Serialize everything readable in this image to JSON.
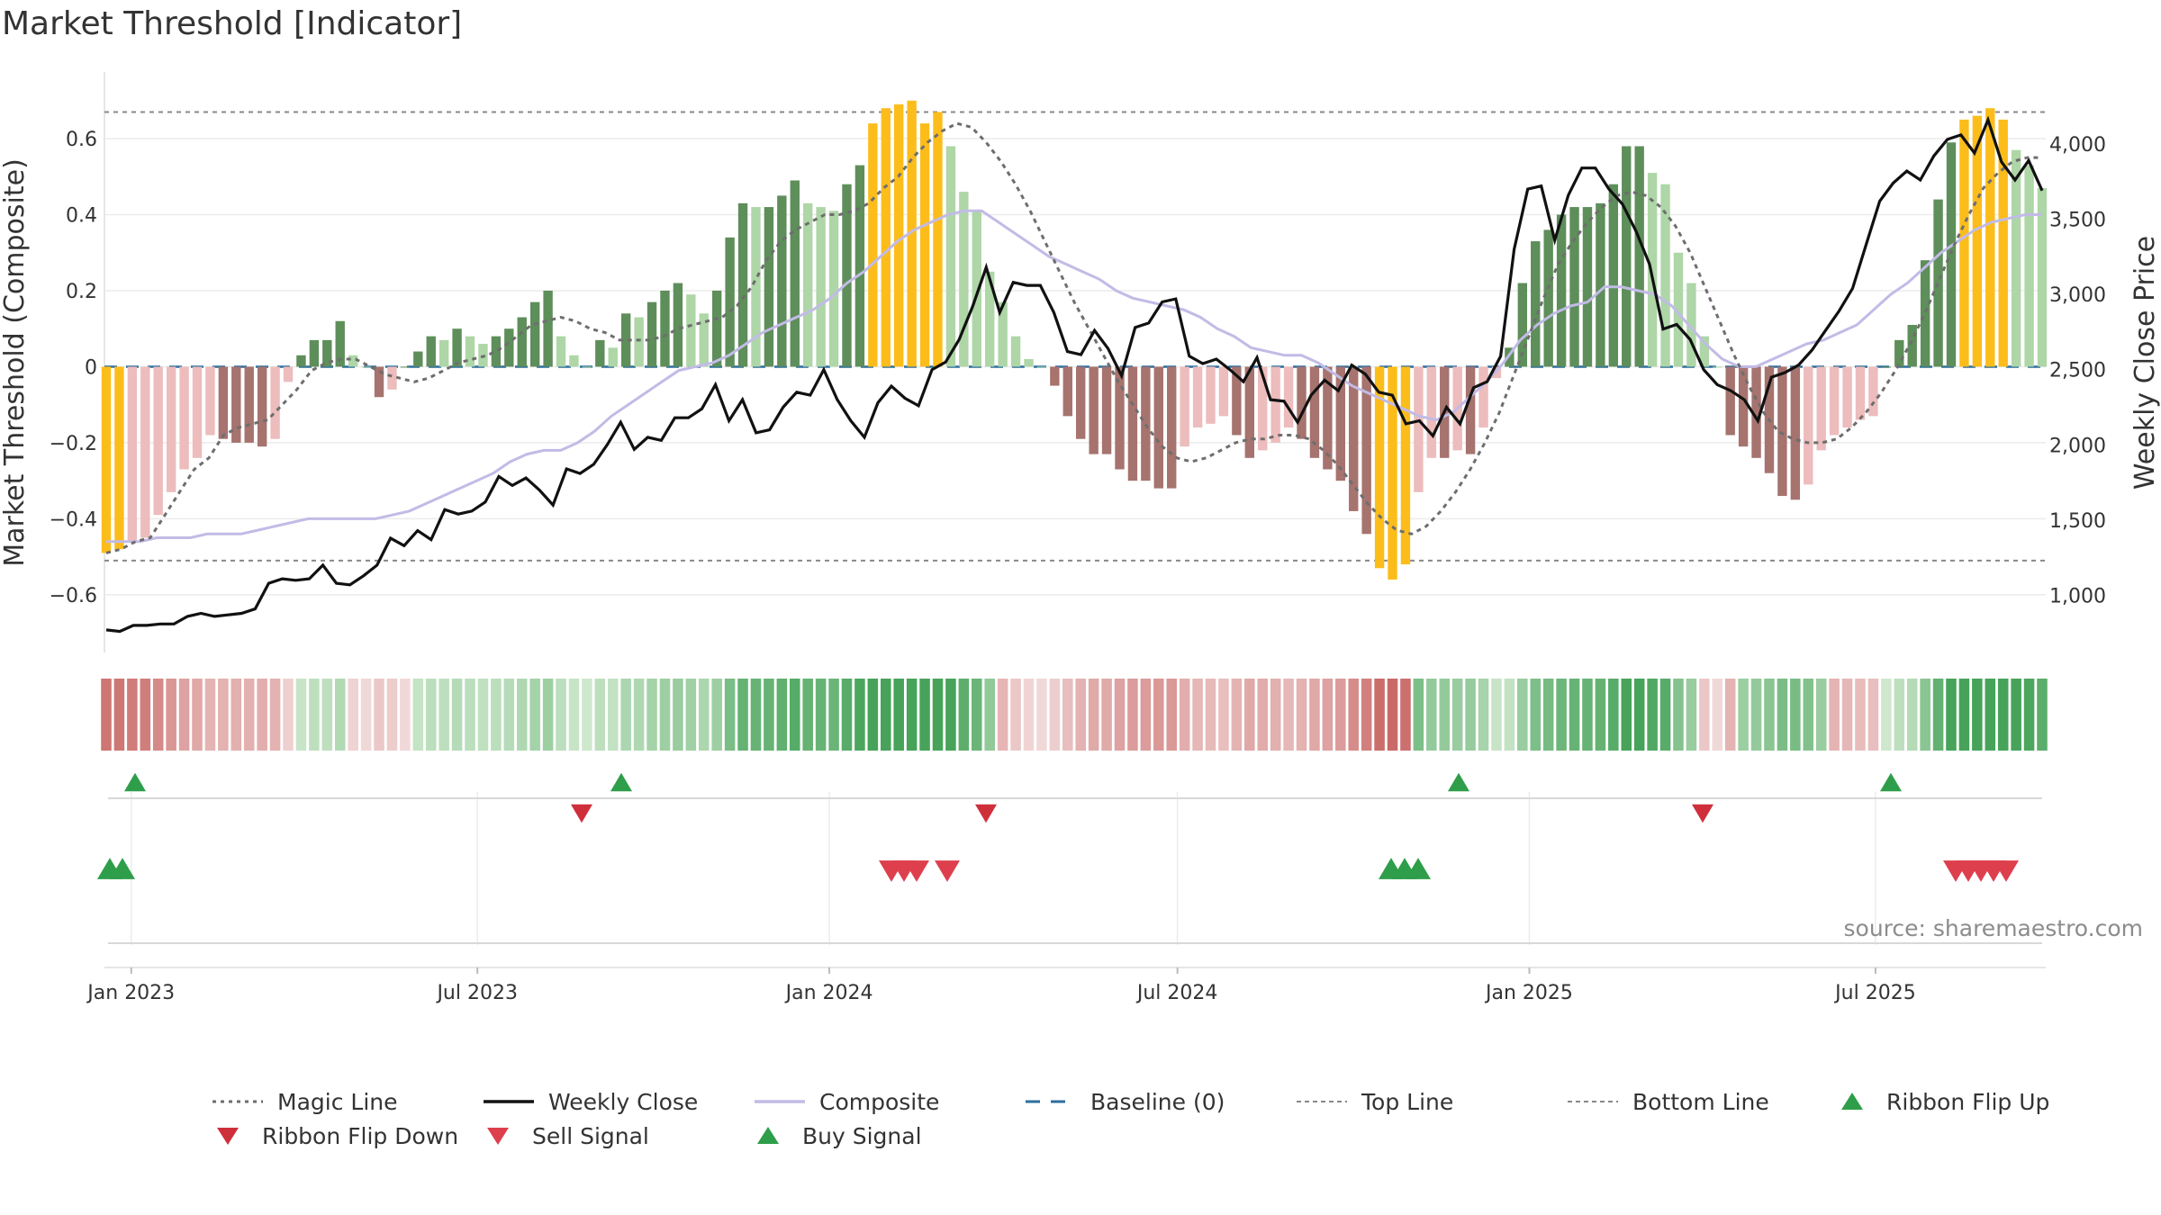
{
  "chart_data": {
    "type": "bar+line",
    "title": "Market Threshold [Indicator]",
    "source": "source: sharemaestro.com",
    "y_left": {
      "label": "Market Threshold (Composite)",
      "range": [
        -0.74,
        0.78
      ],
      "ticks": [
        0.6,
        0.4,
        0.2,
        0,
        -0.2,
        -0.4,
        -0.6
      ],
      "tick_labels": [
        "0.6",
        "0.4",
        "0.2",
        "0",
        "−0.2",
        "−0.4",
        "−0.6"
      ]
    },
    "y_right": {
      "label": "Weekly Close Price",
      "range": [
        650,
        4490
      ],
      "ticks": [
        4000,
        3500,
        3000,
        2500,
        2000,
        1500,
        1000
      ],
      "tick_labels": [
        "4,000",
        "3,500",
        "3,000",
        "2,500",
        "2,000",
        "1,500",
        "1,000"
      ]
    },
    "x_axis": {
      "start": "2022-12-18",
      "end": "2025-09-28",
      "ticks": [
        {
          "date": "2023-01-01",
          "label": "Jan 2023"
        },
        {
          "date": "2023-07-01",
          "label": "Jul 2023"
        },
        {
          "date": "2024-01-01",
          "label": "Jan 2024"
        },
        {
          "date": "2024-07-01",
          "label": "Jul 2024"
        },
        {
          "date": "2025-01-01",
          "label": "Jan 2025"
        },
        {
          "date": "2025-07-01",
          "label": "Jul 2025"
        }
      ]
    },
    "top_line": 0.67,
    "bottom_line": -0.51,
    "baseline": 0,
    "colors": {
      "extreme": "#fcbd1b",
      "strong_up": "#5e8e5a",
      "weak_up": "#aed6a7",
      "strong_down": "#a6736e",
      "weak_down": "#edbcbc",
      "weekly_close": "#111111",
      "composite": "#c2bbe6",
      "magic_line": "#6e6e6e",
      "baseline": "#2c6e9e",
      "ref_line": "#888888",
      "buy": "#2e9e4a",
      "sell": "#de3f4d",
      "ribbon_pos_strong": "#47a35a",
      "ribbon_pos_weak": "#cfe8cd",
      "ribbon_neg_strong": "#c96a68",
      "ribbon_neg_weak": "#f1d8d8"
    },
    "composite_bars": [
      -0.49,
      -0.48,
      -0.46,
      -0.45,
      -0.39,
      -0.33,
      -0.27,
      -0.24,
      -0.18,
      -0.19,
      -0.2,
      -0.2,
      -0.21,
      -0.19,
      -0.04,
      0.03,
      0.07,
      0.07,
      0.12,
      0.03,
      0.0,
      -0.08,
      -0.06,
      0.0,
      0.04,
      0.08,
      0.07,
      0.1,
      0.08,
      0.06,
      0.08,
      0.1,
      0.13,
      0.17,
      0.2,
      0.08,
      0.03,
      0.0,
      0.07,
      0.05,
      0.14,
      0.13,
      0.17,
      0.2,
      0.22,
      0.19,
      0.14,
      0.2,
      0.34,
      0.43,
      0.42,
      0.42,
      0.45,
      0.49,
      0.43,
      0.42,
      0.41,
      0.48,
      0.53,
      0.64,
      0.68,
      0.69,
      0.7,
      0.64,
      0.67,
      0.58,
      0.46,
      0.41,
      0.25,
      0.17,
      0.08,
      0.02,
      0.0,
      -0.05,
      -0.13,
      -0.19,
      -0.23,
      -0.23,
      -0.27,
      -0.3,
      -0.3,
      -0.32,
      -0.32,
      -0.21,
      -0.16,
      -0.15,
      -0.13,
      -0.18,
      -0.24,
      -0.22,
      -0.2,
      -0.16,
      -0.19,
      -0.24,
      -0.27,
      -0.3,
      -0.38,
      -0.44,
      -0.53,
      -0.56,
      -0.52,
      -0.33,
      -0.24,
      -0.24,
      -0.22,
      -0.23,
      -0.16,
      -0.03,
      0.05,
      0.22,
      0.33,
      0.36,
      0.4,
      0.42,
      0.42,
      0.43,
      0.48,
      0.58,
      0.58,
      0.51,
      0.48,
      0.3,
      0.22,
      0.08,
      0.0,
      -0.18,
      -0.21,
      -0.24,
      -0.28,
      -0.34,
      -0.35,
      -0.31,
      -0.22,
      -0.18,
      -0.16,
      -0.14,
      -0.13,
      0.0,
      0.07,
      0.11,
      0.28,
      0.44,
      0.59,
      0.65,
      0.66,
      0.68,
      0.65,
      0.57,
      0.53,
      0.47
    ],
    "weekly_close": [
      770,
      760,
      800,
      800,
      810,
      810,
      860,
      880,
      860,
      870,
      880,
      910,
      1080,
      1110,
      1100,
      1110,
      1200,
      1080,
      1070,
      1130,
      1200,
      1380,
      1330,
      1430,
      1370,
      1570,
      1540,
      1560,
      1620,
      1790,
      1730,
      1780,
      1700,
      1600,
      1840,
      1810,
      1870,
      2000,
      2150,
      1970,
      2050,
      2030,
      2180,
      2180,
      2240,
      2400,
      2160,
      2300,
      2080,
      2100,
      2250,
      2350,
      2330,
      2500,
      2300,
      2160,
      2050,
      2280,
      2390,
      2310,
      2260,
      2500,
      2550,
      2700,
      2920,
      3180,
      2880,
      3080,
      3060,
      3060,
      2880,
      2620,
      2600,
      2760,
      2640,
      2460,
      2780,
      2810,
      2950,
      2970,
      2590,
      2540,
      2570,
      2500,
      2420,
      2580,
      2300,
      2290,
      2150,
      2330,
      2430,
      2360,
      2530,
      2470,
      2350,
      2330,
      2140,
      2160,
      2060,
      2250,
      2140,
      2380,
      2420,
      2590,
      3300,
      3700,
      3720,
      3360,
      3660,
      3840,
      3840,
      3700,
      3600,
      3420,
      3200,
      2770,
      2800,
      2700,
      2500,
      2400,
      2360,
      2300,
      2160,
      2450,
      2480,
      2530,
      2630,
      2760,
      2890,
      3040,
      3330,
      3620,
      3740,
      3820,
      3760,
      3920,
      4030,
      4060,
      3940,
      4160,
      3880,
      3760,
      3890,
      3690
    ],
    "magic_line": [
      -0.49,
      -0.48,
      -0.46,
      -0.45,
      -0.39,
      -0.33,
      -0.27,
      -0.24,
      -0.18,
      -0.16,
      -0.15,
      -0.14,
      -0.1,
      -0.06,
      -0.01,
      0.01,
      0.02,
      0.02,
      0.0,
      -0.02,
      -0.03,
      -0.04,
      -0.03,
      -0.01,
      0.01,
      0.02,
      0.03,
      0.05,
      0.08,
      0.11,
      0.12,
      0.13,
      0.12,
      0.1,
      0.09,
      0.07,
      0.07,
      0.07,
      0.08,
      0.1,
      0.11,
      0.12,
      0.13,
      0.16,
      0.21,
      0.28,
      0.33,
      0.36,
      0.38,
      0.4,
      0.4,
      0.41,
      0.43,
      0.47,
      0.5,
      0.55,
      0.59,
      0.62,
      0.64,
      0.63,
      0.59,
      0.54,
      0.48,
      0.41,
      0.33,
      0.25,
      0.17,
      0.1,
      0.03,
      -0.04,
      -0.1,
      -0.16,
      -0.21,
      -0.24,
      -0.25,
      -0.24,
      -0.22,
      -0.2,
      -0.19,
      -0.19,
      -0.18,
      -0.18,
      -0.19,
      -0.22,
      -0.26,
      -0.31,
      -0.36,
      -0.4,
      -0.43,
      -0.44,
      -0.42,
      -0.38,
      -0.33,
      -0.27,
      -0.2,
      -0.12,
      -0.02,
      0.08,
      0.18,
      0.27,
      0.33,
      0.38,
      0.42,
      0.45,
      0.46,
      0.45,
      0.42,
      0.37,
      0.3,
      0.21,
      0.12,
      0.03,
      -0.05,
      -0.12,
      -0.17,
      -0.19,
      -0.2,
      -0.2,
      -0.19,
      -0.16,
      -0.12,
      -0.07,
      -0.01,
      0.06,
      0.14,
      0.23,
      0.32,
      0.4,
      0.47,
      0.51,
      0.54,
      0.55,
      0.55
    ],
    "composite_line": [
      -0.46,
      -0.46,
      -0.46,
      -0.45,
      -0.45,
      -0.45,
      -0.44,
      -0.44,
      -0.44,
      -0.43,
      -0.42,
      -0.41,
      -0.4,
      -0.4,
      -0.4,
      -0.4,
      -0.4,
      -0.39,
      -0.38,
      -0.36,
      -0.34,
      -0.32,
      -0.3,
      -0.28,
      -0.25,
      -0.23,
      -0.22,
      -0.22,
      -0.2,
      -0.17,
      -0.13,
      -0.1,
      -0.07,
      -0.04,
      -0.01,
      0.0,
      0.01,
      0.03,
      0.06,
      0.09,
      0.11,
      0.13,
      0.15,
      0.18,
      0.22,
      0.25,
      0.29,
      0.33,
      0.36,
      0.38,
      0.4,
      0.41,
      0.41,
      0.38,
      0.35,
      0.32,
      0.29,
      0.27,
      0.25,
      0.23,
      0.2,
      0.18,
      0.17,
      0.16,
      0.15,
      0.13,
      0.1,
      0.08,
      0.05,
      0.04,
      0.03,
      0.03,
      0.01,
      -0.02,
      -0.05,
      -0.07,
      -0.09,
      -0.11,
      -0.13,
      -0.14,
      -0.12,
      -0.08,
      -0.04,
      0.01,
      0.07,
      0.11,
      0.14,
      0.16,
      0.17,
      0.21,
      0.21,
      0.2,
      0.19,
      0.16,
      0.11,
      0.06,
      0.02,
      0.0,
      0.0,
      0.02,
      0.04,
      0.06,
      0.07,
      0.09,
      0.11,
      0.15,
      0.19,
      0.22,
      0.26,
      0.3,
      0.33,
      0.36,
      0.38,
      0.39,
      0.4,
      0.4
    ]
  }
}
